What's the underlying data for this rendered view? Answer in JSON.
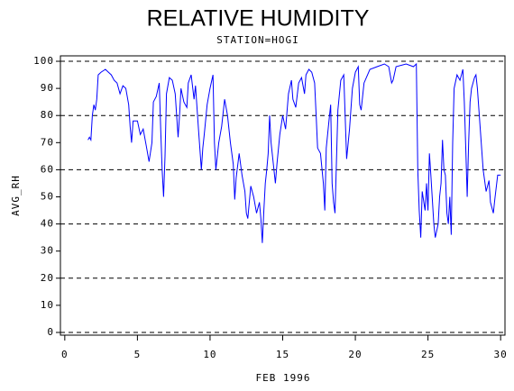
{
  "chart_data": {
    "type": "line",
    "title": "RELATIVE HUMIDITY",
    "subtitle": "STATION=HOGI",
    "x_label": "FEB 1996",
    "y_label": "AVG_RH",
    "xlim": [
      -0.3,
      30.3
    ],
    "ylim": [
      -1,
      102
    ],
    "xticks": [
      0,
      5,
      10,
      15,
      20,
      25,
      30
    ],
    "yticks": [
      0,
      10,
      20,
      30,
      40,
      50,
      60,
      70,
      80,
      90,
      100
    ],
    "ygrid": [
      0,
      20,
      40,
      60,
      80,
      100
    ],
    "series": [
      {
        "name": "AVG_RH",
        "color": "#0000ff",
        "x": [
          1.6,
          1.7,
          1.8,
          1.9,
          2.0,
          2.1,
          2.2,
          2.3,
          2.5,
          2.8,
          3.0,
          3.2,
          3.4,
          3.6,
          3.8,
          4.0,
          4.2,
          4.4,
          4.5,
          4.6,
          4.7,
          5.0,
          5.2,
          5.4,
          5.6,
          5.8,
          6.0,
          6.1,
          6.3,
          6.5,
          6.6,
          6.7,
          6.8,
          6.9,
          7.0,
          7.2,
          7.4,
          7.6,
          7.8,
          7.9,
          8.0,
          8.2,
          8.4,
          8.5,
          8.7,
          8.9,
          9.0,
          9.2,
          9.4,
          9.5,
          9.6,
          9.8,
          10.0,
          10.2,
          10.3,
          10.4,
          10.6,
          10.8,
          11.0,
          11.2,
          11.4,
          11.6,
          11.7,
          11.8,
          12.0,
          12.2,
          12.4,
          12.5,
          12.6,
          12.8,
          13.0,
          13.2,
          13.4,
          13.5,
          13.6,
          13.7,
          13.8,
          13.9,
          14.0,
          14.1,
          14.2,
          14.4,
          14.5,
          14.6,
          14.8,
          15.0,
          15.2,
          15.4,
          15.6,
          15.7,
          15.9,
          16.1,
          16.3,
          16.5,
          16.6,
          16.8,
          17.0,
          17.2,
          17.3,
          17.4,
          17.6,
          17.8,
          17.9,
          18.0,
          18.2,
          18.3,
          18.4,
          18.5,
          18.6,
          18.8,
          19.0,
          19.2,
          19.4,
          19.6,
          19.8,
          20.0,
          20.2,
          20.3,
          20.4,
          20.6,
          21.0,
          21.5,
          22.0,
          22.3,
          22.5,
          22.6,
          22.8,
          23.5,
          24.0,
          24.2,
          24.3,
          24.4,
          24.5,
          24.6,
          24.8,
          24.9,
          25.0,
          25.1,
          25.2,
          25.4,
          25.5,
          25.7,
          25.8,
          25.9,
          26.0,
          26.1,
          26.2,
          26.3,
          26.4,
          26.5,
          26.6,
          26.7,
          26.8,
          27.0,
          27.2,
          27.4,
          27.5,
          27.6,
          27.7,
          27.8,
          27.9,
          28.0,
          28.2,
          28.3,
          28.4,
          28.6,
          28.8,
          29.0,
          29.2,
          29.3,
          29.5,
          29.6,
          29.8,
          30.0
        ],
        "values": [
          71,
          72,
          71,
          80,
          84,
          82,
          86,
          95,
          96,
          97,
          96,
          95,
          93,
          92,
          88,
          91,
          90,
          84,
          76,
          70,
          78,
          78,
          73,
          75,
          69,
          63,
          70,
          85,
          87,
          92,
          75,
          60,
          50,
          65,
          88,
          94,
          93,
          88,
          72,
          80,
          90,
          85,
          83,
          92,
          95,
          86,
          91,
          75,
          60,
          68,
          73,
          84,
          90,
          95,
          70,
          60,
          70,
          76,
          86,
          80,
          70,
          62,
          49,
          57,
          66,
          58,
          52,
          44,
          42,
          54,
          50,
          44,
          48,
          42,
          33,
          45,
          55,
          60,
          66,
          80,
          70,
          60,
          55,
          62,
          73,
          80,
          75,
          88,
          93,
          86,
          83,
          92,
          94,
          88,
          95,
          97,
          96,
          92,
          80,
          68,
          66,
          55,
          45,
          68,
          79,
          84,
          55,
          48,
          44,
          82,
          93,
          95,
          64,
          75,
          90,
          96,
          98,
          84,
          82,
          92,
          97,
          98,
          99,
          98,
          92,
          93,
          98,
          99,
          98,
          99,
          60,
          45,
          35,
          52,
          45,
          55,
          45,
          66,
          58,
          40,
          35,
          40,
          50,
          55,
          71,
          60,
          58,
          44,
          40,
          50,
          36,
          70,
          90,
          95,
          93,
          97,
          85,
          68,
          50,
          70,
          85,
          90,
          94,
          95,
          90,
          75,
          60,
          52,
          56,
          48,
          44,
          49,
          58,
          58
        ]
      }
    ]
  }
}
